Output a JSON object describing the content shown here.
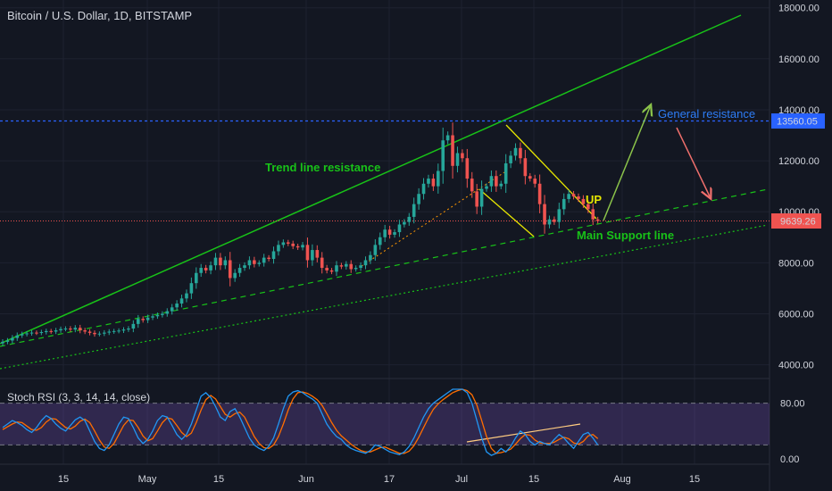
{
  "header": {
    "title": "Bitcoin / U.S. Dollar, 1D, BITSTAMP"
  },
  "indicator": {
    "label": "Stoch RSI (3, 3, 14, 14, close)"
  },
  "chart_data": {
    "type": "candlestick",
    "price_axis": {
      "ticks": [
        4000,
        6000,
        8000,
        10000,
        12000,
        14000,
        16000,
        18000
      ],
      "ylim": [
        3600,
        18200
      ]
    },
    "time_axis": {
      "labels": [
        "15",
        "May",
        "15",
        "Jun",
        "17",
        "Jul",
        "15",
        "Aug",
        "15"
      ]
    },
    "current_price": {
      "value": "9639.26",
      "color": "#ef5350"
    },
    "resistance_level": {
      "value": "13560.05",
      "color": "#2962ff"
    },
    "annotations": {
      "trend_line_resistance": "Trend line resistance",
      "up": "UP",
      "general_resistance": "General resistance",
      "main_support_line": "Main Support line"
    },
    "closes": [
      4900,
      4950,
      5050,
      5150,
      5200,
      5230,
      5260,
      5250,
      5280,
      5320,
      5300,
      5350,
      5400,
      5420,
      5380,
      5450,
      5350,
      5300,
      5250,
      5200,
      5220,
      5260,
      5300,
      5320,
      5340,
      5380,
      5420,
      5600,
      5800,
      5750,
      5850,
      5900,
      5950,
      6000,
      6100,
      6250,
      6400,
      6600,
      6800,
      7200,
      7600,
      7800,
      7700,
      7900,
      8200,
      7900,
      8100,
      7400,
      7600,
      7800,
      7900,
      8100,
      7950,
      8000,
      8200,
      8150,
      8450,
      8700,
      8800,
      8750,
      8650,
      8600,
      8700,
      8100,
      8500,
      8200,
      7800,
      7700,
      7650,
      7900,
      7850,
      7950,
      7750,
      7800,
      7900,
      8100,
      8300,
      8700,
      9000,
      9300,
      9100,
      9200,
      9500,
      9600,
      9800,
      10300,
      10700,
      11100,
      11300,
      11000,
      11600,
      12800,
      13000,
      11800,
      12300,
      12100,
      11300,
      10800,
      10200,
      10900,
      11000,
      11400,
      11000,
      11100,
      11900,
      12200,
      12500,
      12100,
      11400,
      11300,
      11100,
      10300,
      9500,
      9700,
      9600,
      10100,
      10500,
      10700,
      10600,
      10500,
      10300,
      10100,
      9700,
      9639
    ],
    "stoch_rsi": {
      "levels": [
        20,
        80
      ],
      "ticks": [
        0,
        80
      ],
      "k": [
        45,
        50,
        55,
        52,
        48,
        42,
        38,
        45,
        55,
        62,
        58,
        50,
        44,
        40,
        48,
        56,
        60,
        55,
        40,
        25,
        15,
        12,
        20,
        35,
        50,
        60,
        58,
        45,
        30,
        22,
        28,
        40,
        55,
        62,
        60,
        48,
        35,
        28,
        35,
        50,
        70,
        90,
        95,
        88,
        75,
        60,
        55,
        68,
        72,
        60,
        45,
        30,
        20,
        15,
        12,
        18,
        30,
        50,
        72,
        90,
        96,
        98,
        95,
        90,
        86,
        80,
        65,
        50,
        40,
        32,
        28,
        20,
        15,
        12,
        10,
        8,
        12,
        20,
        18,
        14,
        10,
        8,
        6,
        10,
        18,
        30,
        45,
        60,
        72,
        80,
        85,
        90,
        95,
        100,
        100,
        100,
        95,
        80,
        55,
        30,
        10,
        5,
        8,
        15,
        10,
        18,
        30,
        40,
        35,
        25,
        20,
        25,
        22,
        20,
        28,
        35,
        30,
        22,
        15,
        25,
        35,
        38,
        30,
        20
      ],
      "d": [
        42,
        46,
        50,
        53,
        52,
        47,
        42,
        41,
        45,
        53,
        58,
        57,
        51,
        45,
        43,
        47,
        54,
        57,
        52,
        40,
        27,
        17,
        15,
        22,
        35,
        48,
        56,
        55,
        45,
        33,
        26,
        29,
        40,
        52,
        59,
        57,
        48,
        38,
        32,
        37,
        52,
        70,
        85,
        91,
        86,
        75,
        64,
        60,
        65,
        67,
        60,
        46,
        32,
        22,
        16,
        15,
        20,
        32,
        50,
        70,
        86,
        95,
        96,
        94,
        90,
        85,
        77,
        65,
        52,
        41,
        33,
        27,
        21,
        16,
        12,
        10,
        10,
        13,
        16,
        17,
        14,
        11,
        8,
        8,
        11,
        19,
        31,
        45,
        59,
        71,
        79,
        85,
        90,
        95,
        98,
        100,
        98,
        92,
        77,
        55,
        32,
        15,
        8,
        9,
        11,
        14,
        21,
        29,
        35,
        34,
        27,
        23,
        22,
        22,
        24,
        28,
        31,
        29,
        23,
        21,
        25,
        33,
        35,
        29
      ]
    }
  },
  "colors": {
    "up": "#26a69a",
    "down": "#ef5350",
    "trend": "#18c218",
    "stoch_k": "#2196f3",
    "stoch_d": "#ff6d00",
    "band": "#7e57c2"
  }
}
